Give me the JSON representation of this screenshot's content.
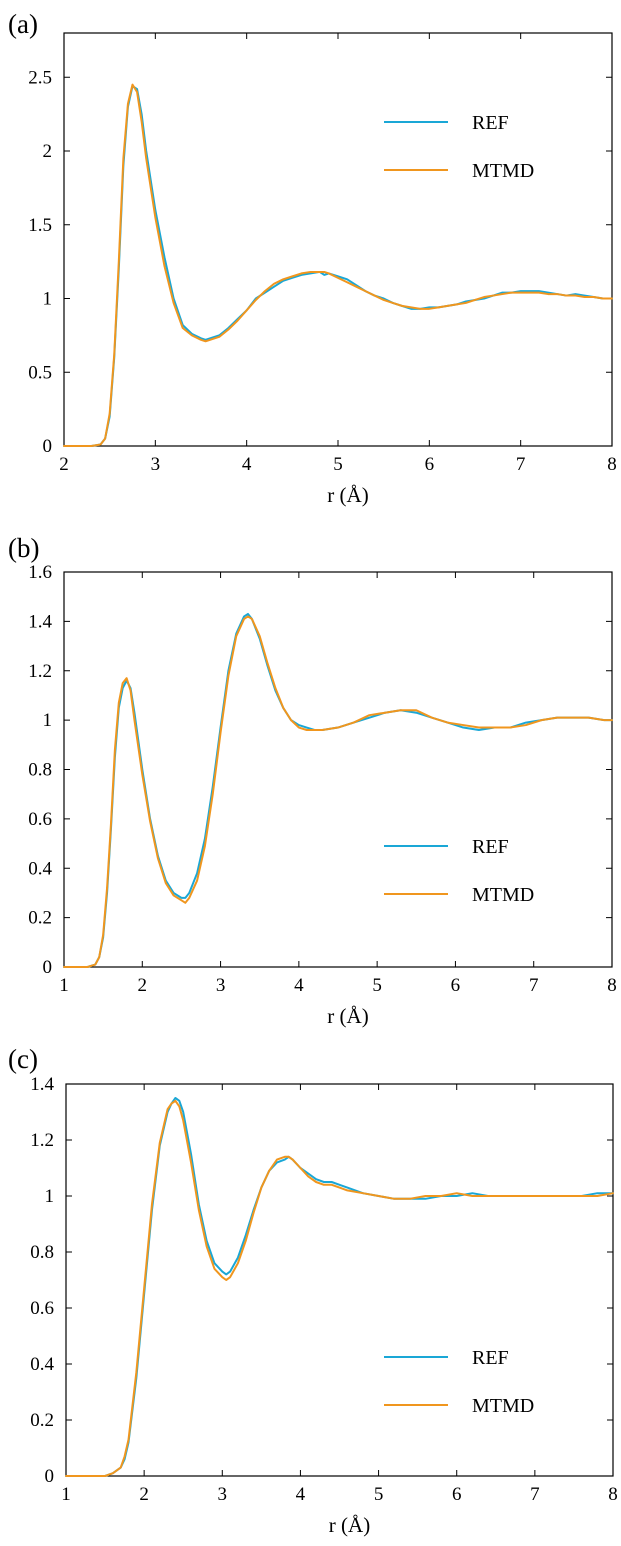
{
  "colors": {
    "ref": "#1aa7d6",
    "mtmd": "#f0961e"
  },
  "chart_data": [
    {
      "type": "line",
      "panel_label": "(a)",
      "xlabel": "r (Å)",
      "ylabel": "",
      "xlim": [
        2,
        8
      ],
      "ylim": [
        0,
        2.8
      ],
      "xticks": [
        2,
        3,
        4,
        5,
        6,
        7,
        8
      ],
      "xtick_labels": [
        "2",
        "3",
        "4",
        "5",
        "6",
        "7",
        "8"
      ],
      "yticks": [
        0,
        0.5,
        1,
        1.5,
        2,
        2.5
      ],
      "ytick_labels": [
        "0",
        "0.5",
        "1",
        "1.5",
        "2",
        "2.5"
      ],
      "legend_position": "top-right",
      "series": [
        {
          "name": "REF",
          "color": "#1aa7d6",
          "x": [
            2.0,
            2.3,
            2.4,
            2.45,
            2.5,
            2.55,
            2.6,
            2.65,
            2.7,
            2.75,
            2.8,
            2.85,
            2.9,
            3.0,
            3.1,
            3.2,
            3.3,
            3.4,
            3.5,
            3.55,
            3.6,
            3.7,
            3.8,
            3.9,
            4.0,
            4.1,
            4.2,
            4.3,
            4.4,
            4.5,
            4.6,
            4.7,
            4.8,
            4.85,
            4.9,
            5.0,
            5.1,
            5.2,
            5.3,
            5.4,
            5.5,
            5.6,
            5.7,
            5.8,
            5.9,
            6.0,
            6.1,
            6.2,
            6.3,
            6.4,
            6.5,
            6.6,
            6.7,
            6.8,
            6.9,
            7.0,
            7.1,
            7.2,
            7.3,
            7.4,
            7.5,
            7.6,
            7.7,
            7.8,
            7.9,
            8.0
          ],
          "y": [
            0.0,
            0.0,
            0.01,
            0.05,
            0.2,
            0.6,
            1.2,
            1.9,
            2.3,
            2.44,
            2.42,
            2.25,
            2.0,
            1.6,
            1.28,
            1.0,
            0.82,
            0.76,
            0.73,
            0.72,
            0.73,
            0.75,
            0.8,
            0.86,
            0.92,
            1.0,
            1.04,
            1.08,
            1.12,
            1.14,
            1.16,
            1.17,
            1.18,
            1.16,
            1.17,
            1.15,
            1.13,
            1.09,
            1.05,
            1.02,
            1.0,
            0.97,
            0.95,
            0.93,
            0.93,
            0.94,
            0.94,
            0.95,
            0.96,
            0.98,
            0.99,
            1.0,
            1.02,
            1.04,
            1.04,
            1.05,
            1.05,
            1.05,
            1.04,
            1.03,
            1.02,
            1.03,
            1.02,
            1.01,
            1.0,
            1.0
          ]
        },
        {
          "name": "MTMD",
          "color": "#f0961e",
          "x": [
            2.0,
            2.3,
            2.4,
            2.45,
            2.5,
            2.55,
            2.6,
            2.65,
            2.7,
            2.75,
            2.8,
            2.85,
            2.9,
            3.0,
            3.1,
            3.2,
            3.3,
            3.4,
            3.5,
            3.55,
            3.6,
            3.7,
            3.8,
            3.9,
            4.0,
            4.1,
            4.2,
            4.3,
            4.4,
            4.5,
            4.6,
            4.7,
            4.8,
            4.85,
            4.9,
            5.0,
            5.1,
            5.2,
            5.3,
            5.4,
            5.5,
            5.6,
            5.7,
            5.8,
            5.9,
            6.0,
            6.1,
            6.2,
            6.3,
            6.4,
            6.5,
            6.6,
            6.7,
            6.8,
            6.9,
            7.0,
            7.1,
            7.2,
            7.3,
            7.4,
            7.5,
            7.6,
            7.7,
            7.8,
            7.9,
            8.0
          ],
          "y": [
            0.0,
            0.0,
            0.01,
            0.05,
            0.22,
            0.62,
            1.25,
            1.95,
            2.32,
            2.45,
            2.4,
            2.2,
            1.95,
            1.55,
            1.22,
            0.97,
            0.8,
            0.75,
            0.72,
            0.71,
            0.72,
            0.74,
            0.79,
            0.85,
            0.92,
            0.99,
            1.05,
            1.1,
            1.13,
            1.15,
            1.17,
            1.18,
            1.18,
            1.18,
            1.17,
            1.14,
            1.11,
            1.08,
            1.05,
            1.02,
            0.99,
            0.97,
            0.95,
            0.94,
            0.93,
            0.93,
            0.94,
            0.95,
            0.96,
            0.97,
            0.99,
            1.01,
            1.02,
            1.03,
            1.04,
            1.04,
            1.04,
            1.04,
            1.03,
            1.03,
            1.02,
            1.02,
            1.01,
            1.01,
            1.0,
            1.0
          ]
        }
      ]
    },
    {
      "type": "line",
      "panel_label": "(b)",
      "xlabel": "r (Å)",
      "ylabel": "",
      "xlim": [
        1,
        8
      ],
      "ylim": [
        0,
        1.6
      ],
      "xticks": [
        1,
        2,
        3,
        4,
        5,
        6,
        7,
        8
      ],
      "xtick_labels": [
        "1",
        "2",
        "3",
        "4",
        "5",
        "6",
        "7",
        "8"
      ],
      "yticks": [
        0,
        0.2,
        0.4,
        0.6,
        0.8,
        1,
        1.2,
        1.4,
        1.6
      ],
      "ytick_labels": [
        "0",
        "0.2",
        "0.4",
        "0.6",
        "0.8",
        "1",
        "1.2",
        "1.4",
        "1.6"
      ],
      "legend_position": "bottom-right",
      "series": [
        {
          "name": "REF",
          "color": "#1aa7d6",
          "x": [
            1.0,
            1.3,
            1.4,
            1.45,
            1.5,
            1.55,
            1.6,
            1.65,
            1.7,
            1.75,
            1.8,
            1.85,
            1.9,
            2.0,
            2.1,
            2.2,
            2.3,
            2.4,
            2.5,
            2.55,
            2.6,
            2.7,
            2.8,
            2.9,
            3.0,
            3.1,
            3.2,
            3.3,
            3.35,
            3.4,
            3.5,
            3.6,
            3.7,
            3.8,
            3.9,
            4.0,
            4.1,
            4.2,
            4.3,
            4.5,
            4.7,
            4.9,
            5.1,
            5.3,
            5.5,
            5.7,
            5.9,
            6.1,
            6.3,
            6.5,
            6.7,
            6.9,
            7.1,
            7.3,
            7.5,
            7.7,
            7.9,
            8.0
          ],
          "y": [
            0.0,
            0.0,
            0.01,
            0.04,
            0.12,
            0.3,
            0.56,
            0.85,
            1.05,
            1.13,
            1.16,
            1.13,
            1.03,
            0.8,
            0.6,
            0.45,
            0.35,
            0.3,
            0.28,
            0.28,
            0.3,
            0.38,
            0.52,
            0.73,
            0.97,
            1.2,
            1.35,
            1.42,
            1.43,
            1.41,
            1.33,
            1.22,
            1.12,
            1.05,
            1.0,
            0.98,
            0.97,
            0.96,
            0.96,
            0.97,
            0.99,
            1.01,
            1.03,
            1.04,
            1.03,
            1.01,
            0.99,
            0.97,
            0.96,
            0.97,
            0.97,
            0.99,
            1.0,
            1.01,
            1.01,
            1.01,
            1.0,
            1.0
          ]
        },
        {
          "name": "MTMD",
          "color": "#f0961e",
          "x": [
            1.0,
            1.3,
            1.4,
            1.45,
            1.5,
            1.55,
            1.6,
            1.65,
            1.7,
            1.75,
            1.8,
            1.85,
            1.9,
            2.0,
            2.1,
            2.2,
            2.3,
            2.4,
            2.5,
            2.55,
            2.6,
            2.7,
            2.8,
            2.9,
            3.0,
            3.1,
            3.2,
            3.3,
            3.35,
            3.4,
            3.5,
            3.6,
            3.7,
            3.8,
            3.9,
            4.0,
            4.1,
            4.2,
            4.3,
            4.5,
            4.7,
            4.9,
            5.1,
            5.3,
            5.5,
            5.7,
            5.9,
            6.1,
            6.3,
            6.5,
            6.7,
            6.9,
            7.1,
            7.3,
            7.5,
            7.7,
            7.9,
            8.0
          ],
          "y": [
            0.0,
            0.0,
            0.01,
            0.04,
            0.13,
            0.32,
            0.58,
            0.88,
            1.07,
            1.15,
            1.17,
            1.12,
            1.0,
            0.78,
            0.59,
            0.44,
            0.34,
            0.29,
            0.27,
            0.26,
            0.28,
            0.35,
            0.49,
            0.7,
            0.95,
            1.18,
            1.34,
            1.41,
            1.42,
            1.41,
            1.34,
            1.23,
            1.13,
            1.05,
            1.0,
            0.97,
            0.96,
            0.96,
            0.96,
            0.97,
            0.99,
            1.02,
            1.03,
            1.04,
            1.04,
            1.01,
            0.99,
            0.98,
            0.97,
            0.97,
            0.97,
            0.98,
            1.0,
            1.01,
            1.01,
            1.01,
            1.0,
            1.0
          ]
        }
      ]
    },
    {
      "type": "line",
      "panel_label": "(c)",
      "xlabel": "r (Å)",
      "ylabel": "",
      "xlim": [
        1,
        8
      ],
      "ylim": [
        0,
        1.4
      ],
      "xticks": [
        1,
        2,
        3,
        4,
        5,
        6,
        7,
        8
      ],
      "xtick_labels": [
        "1",
        "2",
        "3",
        "4",
        "5",
        "6",
        "7",
        "8"
      ],
      "yticks": [
        0,
        0.2,
        0.4,
        0.6,
        0.8,
        1,
        1.2,
        1.4
      ],
      "ytick_labels": [
        "0",
        "0.2",
        "0.4",
        "0.6",
        "0.8",
        "1",
        "1.2",
        "1.4"
      ],
      "legend_position": "bottom-right",
      "series": [
        {
          "name": "REF",
          "color": "#1aa7d6",
          "x": [
            1.0,
            1.5,
            1.6,
            1.7,
            1.75,
            1.8,
            1.9,
            2.0,
            2.1,
            2.2,
            2.3,
            2.35,
            2.4,
            2.45,
            2.5,
            2.6,
            2.7,
            2.8,
            2.9,
            3.0,
            3.05,
            3.1,
            3.2,
            3.3,
            3.4,
            3.5,
            3.6,
            3.7,
            3.8,
            3.85,
            3.9,
            4.0,
            4.1,
            4.2,
            4.3,
            4.4,
            4.5,
            4.6,
            4.8,
            5.0,
            5.2,
            5.4,
            5.6,
            5.8,
            6.0,
            6.2,
            6.4,
            6.6,
            6.8,
            7.0,
            7.2,
            7.4,
            7.6,
            7.8,
            8.0
          ],
          "y": [
            0.0,
            0.0,
            0.01,
            0.03,
            0.06,
            0.12,
            0.35,
            0.65,
            0.95,
            1.18,
            1.3,
            1.33,
            1.35,
            1.34,
            1.3,
            1.15,
            0.97,
            0.84,
            0.76,
            0.73,
            0.72,
            0.73,
            0.78,
            0.86,
            0.95,
            1.03,
            1.09,
            1.12,
            1.13,
            1.14,
            1.13,
            1.1,
            1.08,
            1.06,
            1.05,
            1.05,
            1.04,
            1.03,
            1.01,
            1.0,
            0.99,
            0.99,
            0.99,
            1.0,
            1.0,
            1.01,
            1.0,
            1.0,
            1.0,
            1.0,
            1.0,
            1.0,
            1.0,
            1.01,
            1.01
          ]
        },
        {
          "name": "MTMD",
          "color": "#f0961e",
          "x": [
            1.0,
            1.5,
            1.6,
            1.7,
            1.75,
            1.8,
            1.9,
            2.0,
            2.1,
            2.2,
            2.3,
            2.35,
            2.4,
            2.45,
            2.5,
            2.6,
            2.7,
            2.8,
            2.9,
            3.0,
            3.05,
            3.1,
            3.2,
            3.3,
            3.4,
            3.5,
            3.6,
            3.7,
            3.8,
            3.85,
            3.9,
            4.0,
            4.1,
            4.2,
            4.3,
            4.4,
            4.5,
            4.6,
            4.8,
            5.0,
            5.2,
            5.4,
            5.6,
            5.8,
            6.0,
            6.2,
            6.4,
            6.6,
            6.8,
            7.0,
            7.2,
            7.4,
            7.6,
            7.8,
            8.0
          ],
          "y": [
            0.0,
            0.0,
            0.01,
            0.03,
            0.07,
            0.13,
            0.37,
            0.67,
            0.97,
            1.19,
            1.31,
            1.33,
            1.34,
            1.32,
            1.27,
            1.12,
            0.95,
            0.82,
            0.74,
            0.71,
            0.7,
            0.71,
            0.76,
            0.84,
            0.94,
            1.03,
            1.09,
            1.13,
            1.14,
            1.14,
            1.13,
            1.1,
            1.07,
            1.05,
            1.04,
            1.04,
            1.03,
            1.02,
            1.01,
            1.0,
            0.99,
            0.99,
            1.0,
            1.0,
            1.01,
            1.0,
            1.0,
            1.0,
            1.0,
            1.0,
            1.0,
            1.0,
            1.0,
            1.0,
            1.01
          ]
        }
      ]
    }
  ]
}
